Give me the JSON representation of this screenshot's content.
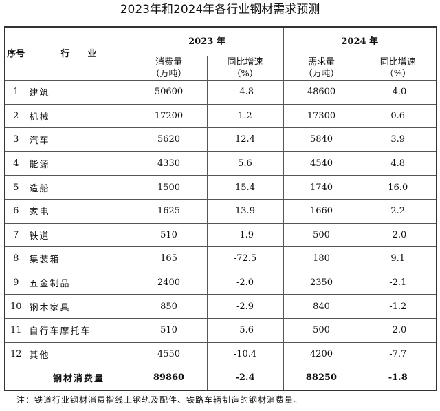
{
  "title": "2023年和2024年各行业钢材需求预测",
  "table": {
    "headers": {
      "seq": "序号",
      "industry": "行　　业",
      "year_2023": "2023 年",
      "year_2024": "2024 年",
      "consumption_2023": "消费量",
      "unit_2023": "（万吨）",
      "growth_2023": "同比增速",
      "pct_2023": "（%）",
      "demand_2024": "需求量",
      "unit_2024": "（万吨）",
      "growth_2024": "同比增速",
      "pct_2024": "（%）"
    },
    "rows": [
      {
        "seq": "1",
        "industry": "建筑",
        "c2023": "50600",
        "g2023": "-4.8",
        "d2024": "48600",
        "g2024": "-4.0"
      },
      {
        "seq": "2",
        "industry": "机械",
        "c2023": "17200",
        "g2023": "1.2",
        "d2024": "17300",
        "g2024": "0.6"
      },
      {
        "seq": "3",
        "industry": "汽车",
        "c2023": "5620",
        "g2023": "12.4",
        "d2024": "5840",
        "g2024": "3.9"
      },
      {
        "seq": "4",
        "industry": "能源",
        "c2023": "4330",
        "g2023": "5.6",
        "d2024": "4540",
        "g2024": "4.8"
      },
      {
        "seq": "5",
        "industry": "造船",
        "c2023": "1500",
        "g2023": "15.4",
        "d2024": "1740",
        "g2024": "16.0"
      },
      {
        "seq": "6",
        "industry": "家电",
        "c2023": "1625",
        "g2023": "13.9",
        "d2024": "1660",
        "g2024": "2.2"
      },
      {
        "seq": "7",
        "industry": "铁道",
        "c2023": "510",
        "g2023": "-1.9",
        "d2024": "500",
        "g2024": "-2.0"
      },
      {
        "seq": "8",
        "industry": "集装箱",
        "c2023": "165",
        "g2023": "-72.5",
        "d2024": "180",
        "g2024": "9.1"
      },
      {
        "seq": "9",
        "industry": "五金制品",
        "c2023": "2400",
        "g2023": "-2.0",
        "d2024": "2350",
        "g2024": "-2.1"
      },
      {
        "seq": "10",
        "industry": "钢木家具",
        "c2023": "850",
        "g2023": "-2.9",
        "d2024": "840",
        "g2024": "-1.2"
      },
      {
        "seq": "11",
        "industry": "自行车摩托车",
        "c2023": "510",
        "g2023": "-5.6",
        "d2024": "500",
        "g2024": "-2.0"
      },
      {
        "seq": "12",
        "industry": "其他",
        "c2023": "4550",
        "g2023": "-10.4",
        "d2024": "4200",
        "g2024": "-7.7"
      }
    ],
    "total": {
      "label": "钢材消费量",
      "c2023": "89860",
      "g2023": "-2.4",
      "d2024": "88250",
      "g2024": "-1.8"
    }
  },
  "note": "注：铁道行业钢材消费指线上钢轨及配件、铁路车辆制造的钢材消费量。"
}
